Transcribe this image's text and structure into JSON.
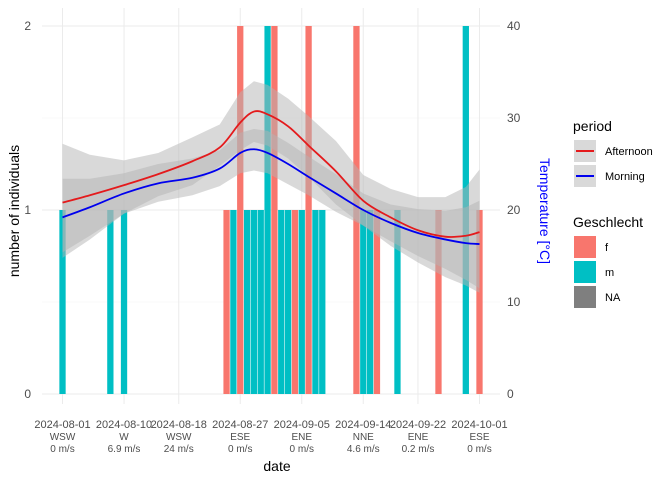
{
  "chart_data": {
    "type": "bar",
    "x_axis": {
      "label": "date",
      "ticks": [
        {
          "date": "2024-08-01",
          "label": "2024-08-01",
          "wind_dir": "WSW",
          "wind_speed": "0 m/s"
        },
        {
          "date": "2024-08-10",
          "label": "2024-08-10",
          "wind_dir": "W",
          "wind_speed": "6.9 m/s"
        },
        {
          "date": "2024-08-18",
          "label": "2024-08-18",
          "wind_dir": "WSW",
          "wind_speed": "24 m/s"
        },
        {
          "date": "2024-08-27",
          "label": "2024-08-27",
          "wind_dir": "ESE",
          "wind_speed": "0 m/s"
        },
        {
          "date": "2024-09-05",
          "label": "2024-09-05",
          "wind_dir": "ENE",
          "wind_speed": "0 m/s"
        },
        {
          "date": "2024-09-14",
          "label": "2024-09-14",
          "wind_dir": "NNE",
          "wind_speed": "4.6 m/s"
        },
        {
          "date": "2024-09-22",
          "label": "2024-09-22",
          "wind_dir": "ENE",
          "wind_speed": "0.2 m/s"
        },
        {
          "date": "2024-10-01",
          "label": "2024-10-01",
          "wind_dir": "ESE",
          "wind_speed": "0 m/s"
        }
      ]
    },
    "y_axis_left": {
      "label": "number of individuals",
      "ticks": [
        0,
        1,
        2
      ],
      "ylim": [
        0,
        2
      ]
    },
    "y_axis_right": {
      "label": "Temperature [°C]",
      "ticks": [
        0,
        10,
        20,
        30,
        40
      ],
      "ylim": [
        0,
        40
      ],
      "color": "#0000ff"
    },
    "grid": true,
    "bars": [
      {
        "date": "2024-08-01",
        "Geschlecht": "m",
        "value": 1
      },
      {
        "date": "2024-08-08",
        "Geschlecht": "m",
        "value": 1
      },
      {
        "date": "2024-08-10",
        "Geschlecht": "m",
        "value": 1
      },
      {
        "date": "2024-08-25",
        "Geschlecht": "f",
        "value": 1
      },
      {
        "date": "2024-08-26",
        "Geschlecht": "m",
        "value": 1
      },
      {
        "date": "2024-08-27",
        "Geschlecht": "f",
        "value": 2
      },
      {
        "date": "2024-08-28",
        "Geschlecht": "m",
        "value": 1
      },
      {
        "date": "2024-08-29",
        "Geschlecht": "m",
        "value": 1
      },
      {
        "date": "2024-08-30",
        "Geschlecht": "m",
        "value": 1
      },
      {
        "date": "2024-08-31",
        "Geschlecht": "m",
        "value": 2
      },
      {
        "date": "2024-09-01",
        "Geschlecht": "f",
        "value": 2
      },
      {
        "date": "2024-09-02",
        "Geschlecht": "m",
        "value": 1
      },
      {
        "date": "2024-09-03",
        "Geschlecht": "m",
        "value": 1
      },
      {
        "date": "2024-09-04",
        "Geschlecht": "f",
        "value": 1
      },
      {
        "date": "2024-09-05",
        "Geschlecht": "m",
        "value": 1
      },
      {
        "date": "2024-09-06",
        "Geschlecht": "f",
        "value": 2
      },
      {
        "date": "2024-09-07",
        "Geschlecht": "m",
        "value": 1
      },
      {
        "date": "2024-09-08",
        "Geschlecht": "m",
        "value": 1
      },
      {
        "date": "2024-09-13",
        "Geschlecht": "f",
        "value": 2
      },
      {
        "date": "2024-09-14",
        "Geschlecht": "m",
        "value": 1
      },
      {
        "date": "2024-09-15",
        "Geschlecht": "m",
        "value": 1
      },
      {
        "date": "2024-09-16",
        "Geschlecht": "f",
        "value": 1
      },
      {
        "date": "2024-09-19",
        "Geschlecht": "m",
        "value": 1
      },
      {
        "date": "2024-09-25",
        "Geschlecht": "f",
        "value": 1
      },
      {
        "date": "2024-09-29",
        "Geschlecht": "m",
        "value": 2
      },
      {
        "date": "2024-10-01",
        "Geschlecht": "f",
        "value": 1
      }
    ],
    "series": [
      {
        "name": "Afternoon",
        "color": "#e41a1c",
        "x": [
          "2024-08-01",
          "2024-08-05",
          "2024-08-10",
          "2024-08-15",
          "2024-08-20",
          "2024-08-24",
          "2024-08-27",
          "2024-08-29",
          "2024-08-31",
          "2024-09-03",
          "2024-09-06",
          "2024-09-10",
          "2024-09-14",
          "2024-09-18",
          "2024-09-22",
          "2024-09-26",
          "2024-09-29",
          "2024-10-01"
        ],
        "y": [
          20.8,
          21.6,
          22.7,
          23.9,
          25.3,
          26.8,
          29.5,
          30.7,
          30.4,
          29.1,
          27.0,
          24.2,
          21.0,
          19.2,
          17.8,
          17.1,
          17.2,
          17.6
        ],
        "ci_low": [
          14.8,
          16.8,
          19.6,
          21.5,
          22.7,
          24.8,
          26.5,
          27.4,
          27.0,
          25.6,
          23.6,
          20.6,
          18.3,
          16.1,
          14.3,
          12.7,
          11.8,
          11.0
        ],
        "ci_high": [
          27.2,
          26.0,
          25.4,
          26.2,
          27.9,
          29.3,
          32.8,
          34.0,
          33.6,
          32.1,
          30.2,
          27.5,
          23.8,
          22.3,
          21.4,
          21.4,
          22.5,
          24.4
        ]
      },
      {
        "name": "Morning",
        "color": "#0000ee",
        "x": [
          "2024-08-01",
          "2024-08-05",
          "2024-08-10",
          "2024-08-15",
          "2024-08-20",
          "2024-08-24",
          "2024-08-27",
          "2024-08-29",
          "2024-08-31",
          "2024-09-03",
          "2024-09-06",
          "2024-09-10",
          "2024-09-14",
          "2024-09-18",
          "2024-09-22",
          "2024-09-26",
          "2024-09-29",
          "2024-10-01"
        ],
        "y": [
          19.2,
          20.3,
          21.8,
          22.9,
          23.5,
          24.5,
          26.2,
          26.6,
          26.2,
          25.0,
          23.6,
          21.8,
          20.0,
          18.6,
          17.5,
          16.8,
          16.4,
          16.3
        ],
        "ci_low": [
          15.4,
          17.2,
          19.6,
          20.9,
          21.6,
          22.6,
          24.0,
          24.3,
          24.0,
          22.8,
          21.6,
          19.8,
          18.3,
          16.6,
          15.0,
          13.6,
          12.4,
          11.5
        ],
        "ci_high": [
          23.4,
          23.4,
          24.0,
          25.0,
          25.6,
          26.5,
          28.4,
          28.8,
          28.6,
          27.3,
          25.8,
          23.9,
          21.8,
          20.6,
          20.1,
          19.9,
          20.3,
          21.0
        ]
      }
    ],
    "legend_period": {
      "title": "period",
      "placement": "right",
      "items": [
        {
          "label": "Afternoon",
          "color": "#e41a1c"
        },
        {
          "label": "Morning",
          "color": "#0000ee"
        }
      ]
    },
    "legend_geschlecht": {
      "title": "Geschlecht",
      "placement": "right",
      "items": [
        {
          "label": "f",
          "color": "#f8766d"
        },
        {
          "label": "m",
          "color": "#00bfc4"
        },
        {
          "label": "NA",
          "color": "#7f7f7f"
        }
      ]
    },
    "ribbon_color": "#b3b3b3"
  }
}
